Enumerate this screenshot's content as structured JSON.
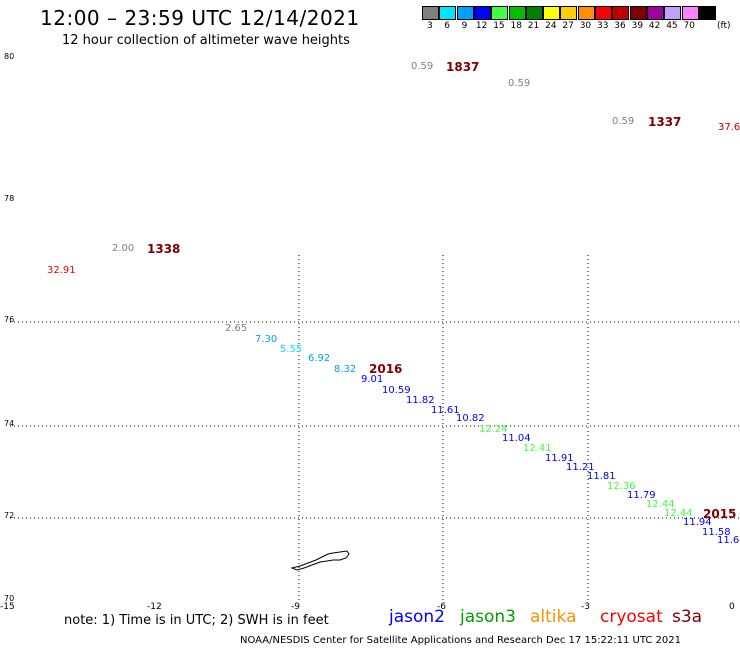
{
  "title": "12:00 – 23:59 UTC 12/14/2021",
  "subtitle": "12 hour collection of altimeter wave heights",
  "legend": {
    "unit": "(ft)",
    "items": [
      {
        "label": "3",
        "color": "#808080"
      },
      {
        "label": "6",
        "color": "#00e5ff"
      },
      {
        "label": "9",
        "color": "#00a0ff"
      },
      {
        "label": "12",
        "color": "#0000ff"
      },
      {
        "label": "15",
        "color": "#40ff40"
      },
      {
        "label": "18",
        "color": "#00c000"
      },
      {
        "label": "21",
        "color": "#008000"
      },
      {
        "label": "24",
        "color": "#ffff00"
      },
      {
        "label": "27",
        "color": "#ffd000"
      },
      {
        "label": "30",
        "color": "#ff9000"
      },
      {
        "label": "33",
        "color": "#ff0000"
      },
      {
        "label": "36",
        "color": "#c00000"
      },
      {
        "label": "39",
        "color": "#800000"
      },
      {
        "label": "42",
        "color": "#a000a0"
      },
      {
        "label": "45",
        "color": "#c0a0ff"
      },
      {
        "label": "70",
        "color": "#ff80ff"
      },
      {
        "label": "",
        "color": "#000000"
      }
    ]
  },
  "lat_labels": [
    "80",
    "78",
    "76",
    "74",
    "72",
    "70"
  ],
  "lon_labels": [
    "-15",
    "-12",
    "-9",
    "-6",
    "-3",
    "0"
  ],
  "points": [
    {
      "v": "0.59",
      "c": "#808080"
    },
    {
      "v": "0.59",
      "c": "#808080"
    },
    {
      "v": "0.59",
      "c": "#808080"
    },
    {
      "v": "37.6",
      "c": "#c00000"
    },
    {
      "v": "2.00",
      "c": "#808080"
    },
    {
      "v": "32.91",
      "c": "#ff0000"
    },
    {
      "v": "2.65",
      "c": "#808080"
    },
    {
      "v": "7.30",
      "c": "#00a0ff"
    },
    {
      "v": "5.55",
      "c": "#00e5ff"
    },
    {
      "v": "6.92",
      "c": "#00a0ff"
    },
    {
      "v": "8.32",
      "c": "#00a0ff"
    },
    {
      "v": "9.01",
      "c": "#0000ff"
    },
    {
      "v": "10.59",
      "c": "#0000ff"
    },
    {
      "v": "11.82",
      "c": "#0000ff"
    },
    {
      "v": "11.61",
      "c": "#0000ff"
    },
    {
      "v": "10.82",
      "c": "#0000ff"
    },
    {
      "v": "12.24",
      "c": "#40ff40"
    },
    {
      "v": "11.04",
      "c": "#0000ff"
    },
    {
      "v": "12.41",
      "c": "#40ff40"
    },
    {
      "v": "11.91",
      "c": "#0000ff"
    },
    {
      "v": "11.21",
      "c": "#0000ff"
    },
    {
      "v": "11.81",
      "c": "#0000ff"
    },
    {
      "v": "12.36",
      "c": "#40ff40"
    },
    {
      "v": "11.79",
      "c": "#0000ff"
    },
    {
      "v": "12.44",
      "c": "#40ff40"
    },
    {
      "v": "12.44",
      "c": "#40ff40"
    },
    {
      "v": "11.94",
      "c": "#0000ff"
    },
    {
      "v": "11.58",
      "c": "#0000ff"
    },
    {
      "v": "11.6",
      "c": "#0000ff"
    }
  ],
  "times": [
    "1837",
    "1337",
    "1338",
    "2016",
    "2015"
  ],
  "time_color": "#800000",
  "note": "note: 1) Time is in UTC; 2) SWH is in feet",
  "satellites": [
    {
      "name": "jason2",
      "color": "#0000ff"
    },
    {
      "name": "jason3",
      "color": "#00a000"
    },
    {
      "name": "altika",
      "color": "#ff9000"
    },
    {
      "name": "cryosat",
      "color": "#ff0000"
    },
    {
      "name": "s3a",
      "color": "#800000"
    }
  ],
  "footer": "NOAA/NESDIS Center for Satellite Applications and Research    Dec 17 15:22:11 UTC 2021"
}
